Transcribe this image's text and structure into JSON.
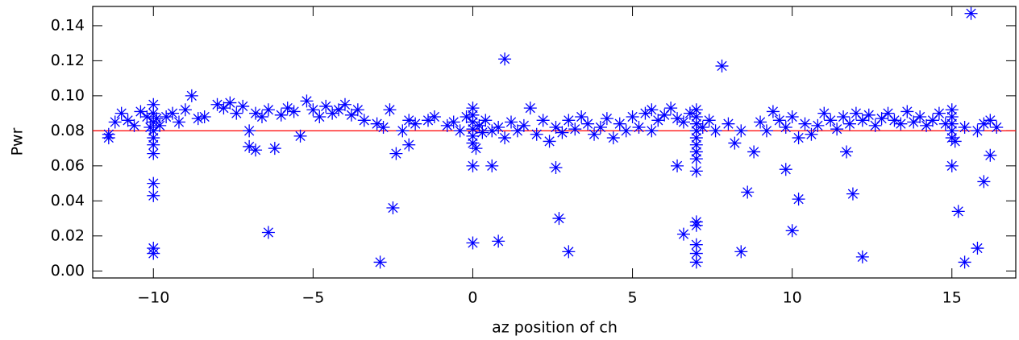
{
  "chart_data": {
    "type": "scatter",
    "x_label": "az position of ch",
    "y_label": "Pwr",
    "color": "#0000ff",
    "hline": {
      "value": 0.08,
      "color": "#ff0000"
    },
    "xlim": [
      -11.9,
      17
    ],
    "ylim": [
      -0.004,
      0.151
    ],
    "xticks": [
      {
        "value": -10,
        "label": "−10"
      },
      {
        "value": -5,
        "label": "−5"
      },
      0,
      5,
      10,
      15
    ],
    "yticks": [
      {
        "value": 0,
        "label": "0.00"
      },
      {
        "value": 0.02,
        "label": "0.02"
      },
      {
        "value": 0.04,
        "label": "0.04"
      },
      {
        "value": 0.06,
        "label": "0.06"
      },
      {
        "value": 0.08,
        "label": "0.08"
      },
      {
        "value": 0.1,
        "label": "0.10"
      },
      {
        "value": 0.12,
        "label": "0.12"
      },
      {
        "value": 0.14,
        "label": "0.14"
      }
    ],
    "x": [
      -11.4,
      -11.2,
      -11.0,
      -10.8,
      -10.6,
      -10.4,
      -10.2,
      -10.1,
      -10.0,
      -10.0,
      -10.0,
      -10.0,
      -10.0,
      -10.0,
      -9.9,
      -9.8,
      -9.6,
      -9.4,
      -9.2,
      -9.0,
      -8.6,
      -8.4,
      -8.0,
      -7.8,
      -7.6,
      -7.4,
      -7.2,
      -7.0,
      -6.8,
      -6.6,
      -6.4,
      -6.0,
      -5.8,
      -5.6,
      -5.2,
      -5.0,
      -4.8,
      -4.6,
      -4.4,
      -4.2,
      -4.0,
      -3.8,
      -3.6,
      -3.4,
      -3.0,
      -2.8,
      -2.6,
      -2.2,
      -2.0,
      -1.8,
      -1.4,
      -1.2,
      -0.8,
      -0.6,
      -0.4,
      -0.2,
      0.0,
      0.0,
      0.0,
      0.0,
      0.0,
      0.0,
      0.1,
      0.2,
      0.3,
      0.4,
      0.6,
      0.8,
      1.0,
      1.2,
      1.4,
      1.6,
      1.8,
      2.0,
      2.2,
      2.4,
      2.6,
      2.8,
      3.0,
      3.2,
      3.4,
      3.6,
      3.8,
      4.0,
      4.2,
      4.4,
      4.6,
      4.8,
      5.0,
      5.2,
      5.4,
      5.6,
      5.8,
      6.0,
      6.2,
      6.4,
      6.6,
      6.8,
      7.0,
      7.0,
      7.0,
      7.0,
      7.0,
      7.0,
      7.0,
      7.0,
      7.2,
      7.4,
      7.6,
      8.0,
      8.2,
      8.4,
      8.8,
      9.0,
      9.2,
      9.4,
      9.6,
      9.8,
      10.0,
      10.2,
      10.4,
      10.6,
      10.8,
      11.0,
      11.2,
      11.4,
      11.6,
      11.8,
      12.0,
      12.2,
      12.4,
      12.6,
      12.8,
      13.0,
      13.2,
      13.4,
      13.6,
      13.8,
      14.0,
      14.2,
      14.4,
      14.6,
      14.8,
      15.0,
      15.0,
      15.0,
      15.0,
      15.0,
      15.1,
      15.4,
      15.8,
      16.0,
      16.2,
      16.4,
      -10.0,
      -10.0,
      -10.0,
      -10.0,
      -10.0,
      -6.4,
      -2.5,
      -2.9,
      -2.4,
      1.0,
      7.8,
      15.6,
      0.0,
      0.8,
      0.0,
      0.6,
      2.7,
      2.6,
      3.0,
      6.6,
      6.4,
      7.0,
      7.0,
      7.0,
      7.0,
      7.0,
      7.0,
      8.4,
      8.6,
      9.8,
      10.0,
      10.2,
      11.9,
      12.2,
      11.7,
      15.2,
      15.0,
      15.4,
      15.8,
      16.0,
      16.2,
      -8.8,
      -11.4,
      -7.0,
      -6.8,
      -6.2,
      -5.4,
      -2.0,
      5.6
    ],
    "values": [
      0.078,
      0.085,
      0.09,
      0.086,
      0.083,
      0.091,
      0.088,
      0.082,
      0.095,
      0.09,
      0.085,
      0.08,
      0.076,
      0.072,
      0.087,
      0.083,
      0.088,
      0.09,
      0.085,
      0.092,
      0.087,
      0.088,
      0.095,
      0.093,
      0.096,
      0.09,
      0.094,
      0.08,
      0.09,
      0.088,
      0.092,
      0.089,
      0.093,
      0.091,
      0.097,
      0.092,
      0.088,
      0.094,
      0.09,
      0.092,
      0.095,
      0.089,
      0.092,
      0.086,
      0.084,
      0.082,
      0.092,
      0.08,
      0.086,
      0.084,
      0.086,
      0.088,
      0.083,
      0.085,
      0.08,
      0.088,
      0.093,
      0.089,
      0.085,
      0.081,
      0.077,
      0.073,
      0.07,
      0.083,
      0.079,
      0.086,
      0.08,
      0.082,
      0.076,
      0.085,
      0.08,
      0.083,
      0.093,
      0.078,
      0.086,
      0.074,
      0.082,
      0.079,
      0.086,
      0.081,
      0.088,
      0.084,
      0.078,
      0.082,
      0.087,
      0.076,
      0.084,
      0.08,
      0.088,
      0.082,
      0.09,
      0.092,
      0.086,
      0.089,
      0.093,
      0.087,
      0.085,
      0.09,
      0.092,
      0.088,
      0.084,
      0.08,
      0.076,
      0.072,
      0.068,
      0.064,
      0.082,
      0.086,
      0.08,
      0.084,
      0.073,
      0.08,
      0.068,
      0.085,
      0.08,
      0.091,
      0.086,
      0.082,
      0.088,
      0.076,
      0.084,
      0.078,
      0.083,
      0.09,
      0.086,
      0.081,
      0.088,
      0.084,
      0.09,
      0.086,
      0.089,
      0.083,
      0.087,
      0.09,
      0.086,
      0.084,
      0.091,
      0.085,
      0.088,
      0.083,
      0.086,
      0.09,
      0.084,
      0.092,
      0.088,
      0.084,
      0.08,
      0.076,
      0.074,
      0.082,
      0.08,
      0.084,
      0.086,
      0.082,
      0.05,
      0.043,
      0.013,
      0.01,
      0.067,
      0.022,
      0.036,
      0.005,
      0.067,
      0.121,
      0.117,
      0.147,
      0.016,
      0.017,
      0.06,
      0.06,
      0.03,
      0.059,
      0.011,
      0.021,
      0.06,
      0.028,
      0.026,
      0.015,
      0.01,
      0.005,
      0.057,
      0.011,
      0.045,
      0.058,
      0.023,
      0.041,
      0.044,
      0.008,
      0.068,
      0.034,
      0.06,
      0.005,
      0.013,
      0.051,
      0.066,
      0.1,
      0.076,
      0.071,
      0.069,
      0.07,
      0.077,
      0.072,
      0.08
    ]
  }
}
